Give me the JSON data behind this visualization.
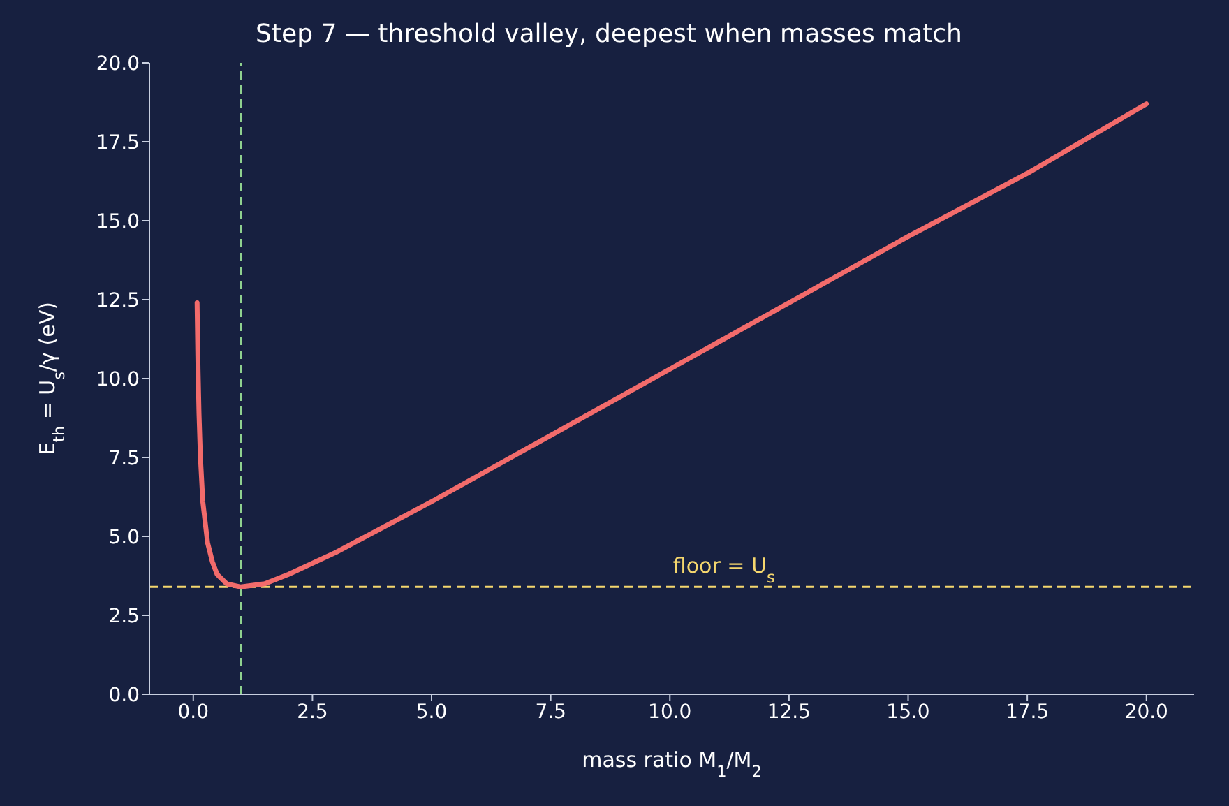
{
  "chart_data": {
    "type": "line",
    "title": "Step 7 — threshold valley, deepest when masses match",
    "xlabel": "mass ratio  M$_{1}$/M$_{2}$",
    "ylabel": "E$_{th}$ = U$_{s}$/γ  (eV)",
    "series": [
      {
        "color": "#f26b6b",
        "x": [
          0.08,
          0.1,
          0.12,
          0.15,
          0.2,
          0.3,
          0.4,
          0.5,
          0.7,
          1,
          1.5,
          2,
          3,
          4,
          5,
          7.5,
          10,
          12.5,
          15,
          17.5,
          20
        ],
        "values": [
          12.4,
          10.3,
          8.9,
          7.5,
          6.1,
          4.8,
          4.2,
          3.8,
          3.5,
          3.4,
          3.5,
          3.8,
          4.5,
          5.3,
          6.1,
          8.2,
          10.3,
          12.4,
          14.5,
          16.5,
          18.7
        ]
      }
    ],
    "xlim": [
      -0.92,
      21
    ],
    "xticks": [
      {
        "value": 0,
        "label": "0.0"
      },
      2.5,
      {
        "value": 5,
        "label": "5.0"
      },
      7.5,
      {
        "value": 10,
        "label": "10.0"
      },
      12.5,
      {
        "value": 15,
        "label": "15.0"
      },
      17.5,
      {
        "value": 20,
        "label": "20.0"
      }
    ],
    "ylim": [
      0,
      20
    ],
    "yticks": [
      {
        "value": 0,
        "label": "0.0"
      },
      2.5,
      {
        "value": 5,
        "label": "5.0"
      },
      7.5,
      {
        "value": 10,
        "label": "10.0"
      },
      12.5,
      {
        "value": 15,
        "label": "15.0"
      },
      17.5,
      {
        "value": 20,
        "label": "20.0"
      }
    ],
    "ref_lines": [
      {
        "axis": "y",
        "value": 3.4,
        "label": "floor  = U$_{s}$",
        "color": "#f5d76e",
        "line_style": "dashed"
      },
      {
        "axis": "x",
        "value": 1,
        "color": "#8fd18f",
        "line_style": "dashed"
      }
    ],
    "grid": false,
    "legend": false,
    "marker": "none",
    "line_style": "solid"
  }
}
